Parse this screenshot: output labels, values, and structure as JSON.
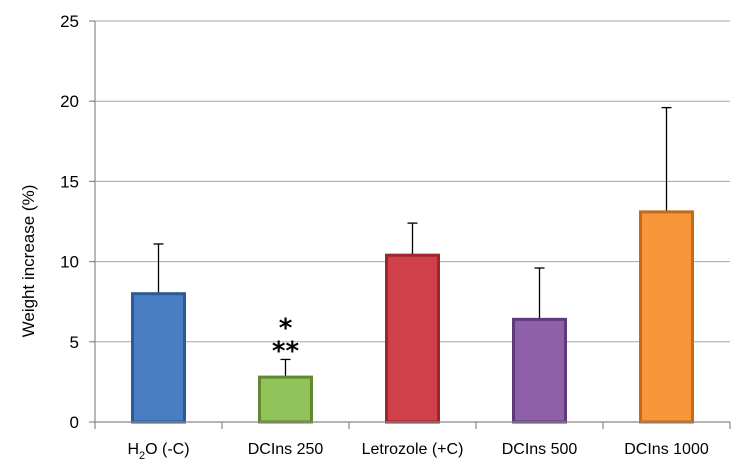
{
  "chart_data": {
    "type": "bar",
    "title": "",
    "xlabel": "",
    "ylabel": "Weight increase (%)",
    "ylim": [
      0,
      25
    ],
    "yticks": [
      0,
      5,
      10,
      15,
      20,
      25
    ],
    "grid": "horizontal",
    "legend": "none",
    "categories": [
      {
        "main": "H",
        "sub": "2",
        "rest": "O (-C)"
      },
      {
        "main": "DCIns 250",
        "sub": "",
        "rest": ""
      },
      {
        "main": "Letrozole (+C)",
        "sub": "",
        "rest": ""
      },
      {
        "main": "DCIns 500",
        "sub": "",
        "rest": ""
      },
      {
        "main": "DCIns 1000",
        "sub": "",
        "rest": ""
      }
    ],
    "values": [
      8.0,
      2.8,
      10.4,
      6.4,
      13.1
    ],
    "error_upper": [
      3.1,
      1.1,
      2.0,
      3.2,
      6.5
    ],
    "colors": [
      {
        "fill": "#4a7ec4",
        "stroke": "#2d5a90"
      },
      {
        "fill": "#92c35a",
        "stroke": "#5f8a32"
      },
      {
        "fill": "#d0404a",
        "stroke": "#9a262e"
      },
      {
        "fill": "#8e60aa",
        "stroke": "#5e3a78"
      },
      {
        "fill": "#f7963a",
        "stroke": "#c46a1a"
      }
    ],
    "annotations": [
      {
        "category_index": 1,
        "lines": [
          "*",
          "**"
        ]
      }
    ]
  }
}
